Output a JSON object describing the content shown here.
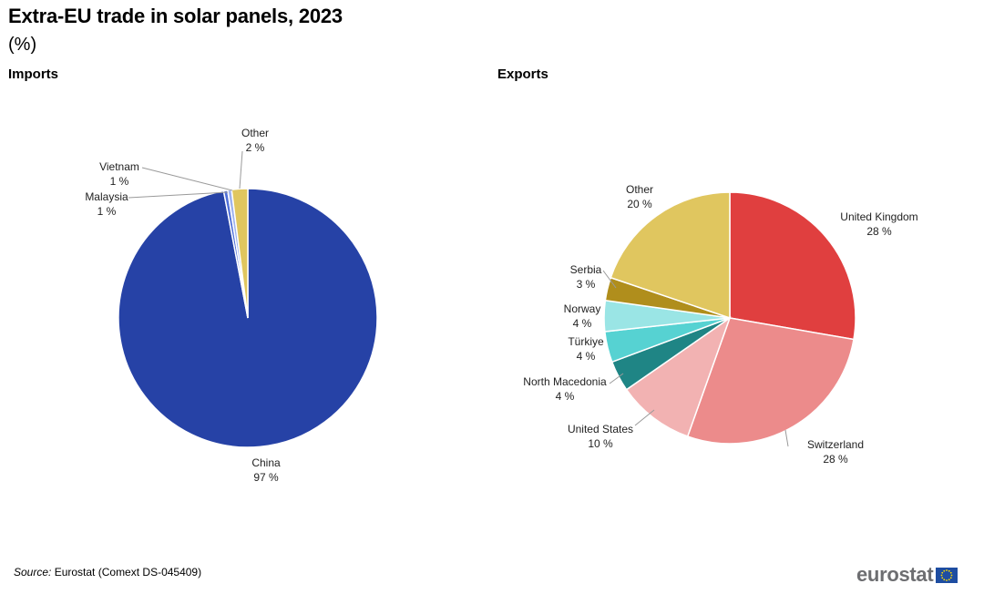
{
  "title": "Extra-EU trade in solar panels, 2023",
  "subtitle": "(%)",
  "source": {
    "label": "Source:",
    "text": "Eurostat (Comext DS-045409)"
  },
  "logo": {
    "text": "eurostat",
    "flag_icon": "eu-flag-icon"
  },
  "chart_data": [
    {
      "type": "pie",
      "title": "Imports",
      "slices": [
        {
          "label": "China",
          "value": 97,
          "value_label": "97 %",
          "color": "#2642a6"
        },
        {
          "label": "Malaysia",
          "value": 0.5,
          "value_label": "1 %",
          "color": "#4f6fd8"
        },
        {
          "label": "Vietnam",
          "value": 0.5,
          "value_label": "1 %",
          "color": "#9fb3ee"
        },
        {
          "label": "Other",
          "value": 2,
          "value_label": "2 %",
          "color": "#e0c65f"
        }
      ]
    },
    {
      "type": "pie",
      "title": "Exports",
      "slices": [
        {
          "label": "United Kingdom",
          "value": 28,
          "value_label": "28 %",
          "color": "#e03f3f"
        },
        {
          "label": "Switzerland",
          "value": 28,
          "value_label": "28 %",
          "color": "#ec8b8b"
        },
        {
          "label": "United States",
          "value": 10,
          "value_label": "10 %",
          "color": "#f2b2b2"
        },
        {
          "label": "North Macedonia",
          "value": 4,
          "value_label": "4 %",
          "color": "#1f8585"
        },
        {
          "label": "Türkiye",
          "value": 4,
          "value_label": "4 %",
          "color": "#56d2d2"
        },
        {
          "label": "Norway",
          "value": 4,
          "value_label": "4 %",
          "color": "#9ae5e5"
        },
        {
          "label": "Serbia",
          "value": 3,
          "value_label": "3 %",
          "color": "#b08e1c"
        },
        {
          "label": "Other",
          "value": 20,
          "value_label": "20 %",
          "color": "#e0c65f"
        }
      ]
    }
  ]
}
